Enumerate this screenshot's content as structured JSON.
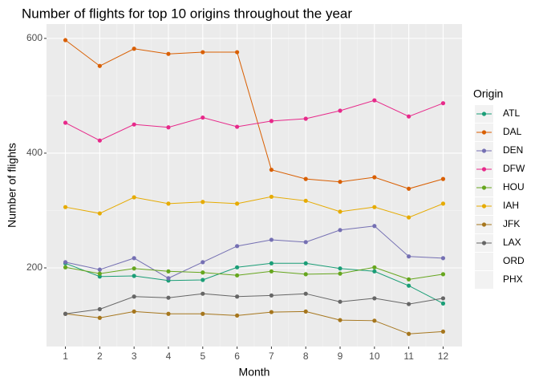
{
  "chart_data": {
    "type": "line",
    "title": "Number of flights for top 10 origins throughout the year",
    "x_label": "Month",
    "y_label": "Number of flights",
    "legend_title": "Origin",
    "legend": "right",
    "grid": true,
    "x": [
      1,
      2,
      3,
      4,
      5,
      6,
      7,
      8,
      9,
      10,
      11,
      12
    ],
    "xlim": [
      0.45,
      12.55
    ],
    "xticks": [
      1,
      2,
      3,
      4,
      5,
      6,
      7,
      8,
      9,
      10,
      11,
      12
    ],
    "ylim": [
      63,
      625
    ],
    "yticks": [
      200,
      400,
      600
    ],
    "series": [
      {
        "name": "ATL",
        "color": "#1b9e77",
        "values": [
          208,
          185,
          186,
          178,
          179,
          201,
          208,
          208,
          199,
          194,
          169,
          138
        ]
      },
      {
        "name": "DAL",
        "color": "#d95f02",
        "values": [
          597,
          552,
          582,
          573,
          576,
          576,
          371,
          355,
          350,
          358,
          338,
          355
        ]
      },
      {
        "name": "DEN",
        "color": "#7570b3",
        "values": [
          210,
          197,
          217,
          182,
          210,
          238,
          249,
          245,
          266,
          273,
          220,
          217
        ]
      },
      {
        "name": "DFW",
        "color": "#e7298a",
        "values": [
          453,
          422,
          450,
          445,
          462,
          446,
          456,
          460,
          474,
          492,
          464,
          487
        ]
      },
      {
        "name": "HOU",
        "color": "#66a61e",
        "values": [
          201,
          190,
          199,
          194,
          192,
          187,
          194,
          189,
          190,
          201,
          180,
          189
        ]
      },
      {
        "name": "IAH",
        "color": "#e6ab02",
        "values": [
          306,
          295,
          323,
          312,
          315,
          312,
          324,
          317,
          298,
          306,
          288,
          312
        ]
      },
      {
        "name": "JFK",
        "color": "#a6761d",
        "values": [
          120,
          113,
          124,
          120,
          120,
          117,
          123,
          124,
          109,
          108,
          85,
          89
        ]
      },
      {
        "name": "LAX",
        "color": "#666666",
        "values": [
          120,
          128,
          150,
          148,
          155,
          150,
          152,
          155,
          141,
          147,
          137,
          147
        ]
      },
      {
        "name": "ORD",
        "values": [
          null,
          null,
          null,
          null,
          null,
          null,
          null,
          null,
          null,
          null,
          null,
          null
        ]
      },
      {
        "name": "PHX",
        "values": [
          null,
          null,
          null,
          null,
          null,
          null,
          null,
          null,
          null,
          null,
          null,
          null
        ]
      }
    ]
  }
}
